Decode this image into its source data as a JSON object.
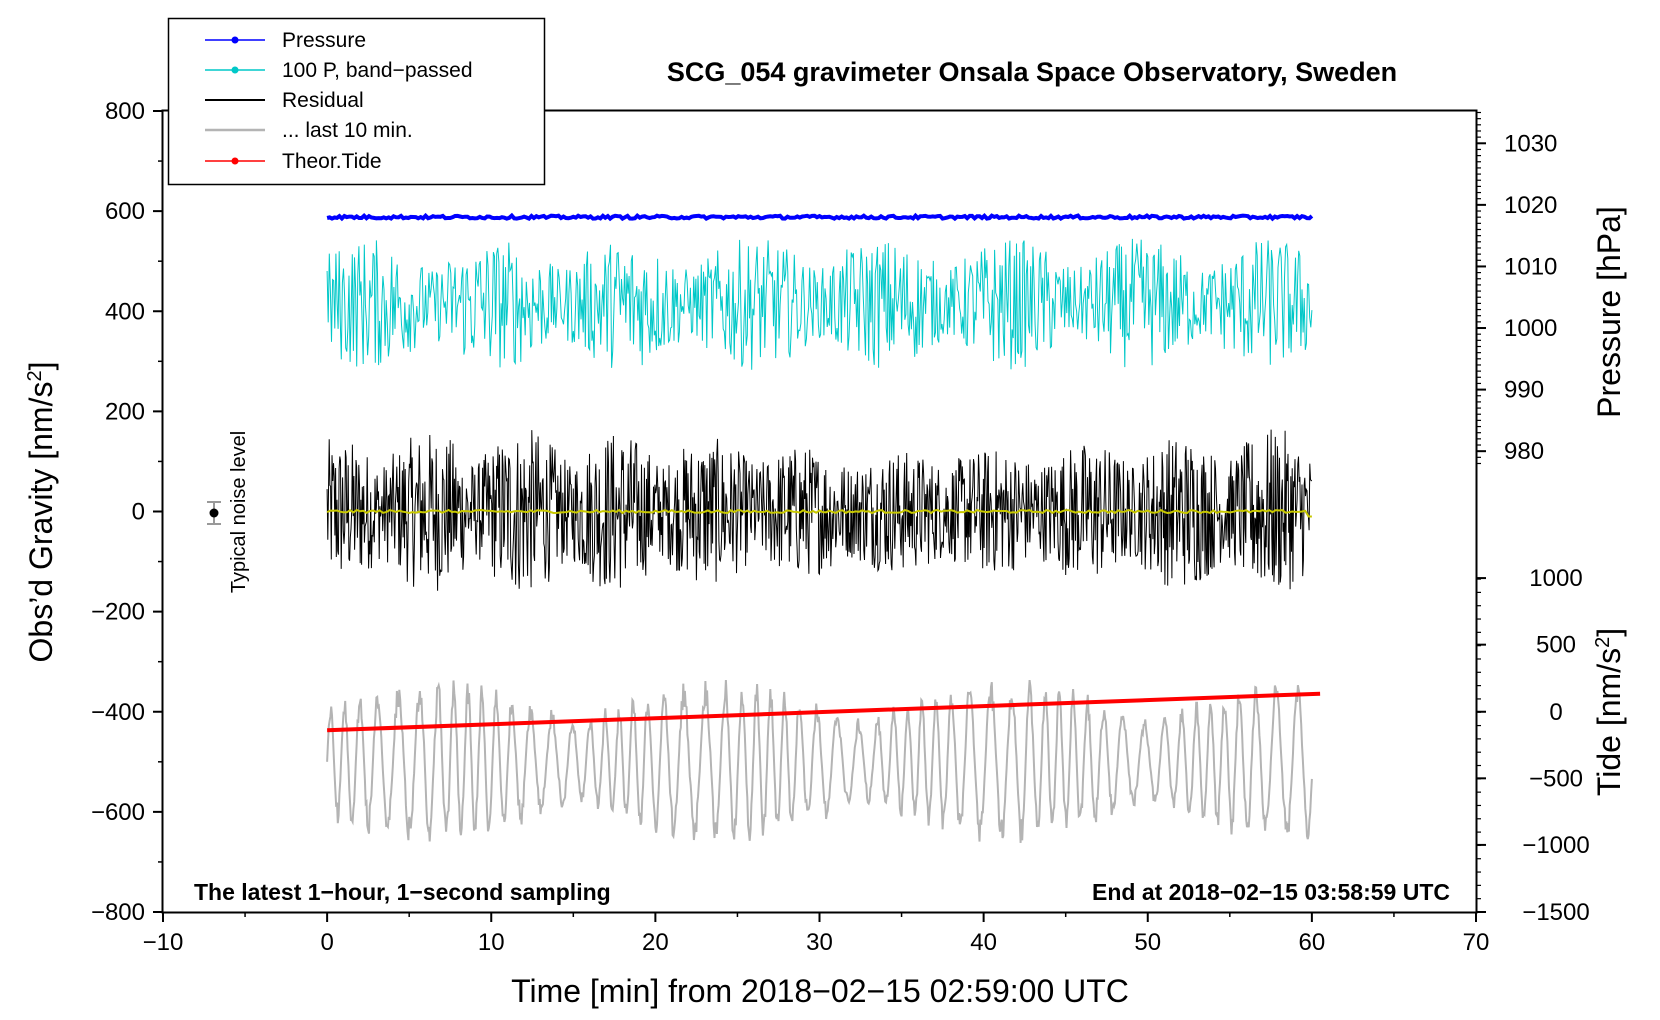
{
  "chart_data": {
    "type": "line",
    "title": "SCG_054 gravimeter Onsala Space Observatory, Sweden",
    "xlabel": "Time [min] from 2018−02−15 02:59:00 UTC",
    "ylabel_left": "Obs’d Gravity [nm/s²]",
    "ylabel_left_base": "Obs’d Gravity [nm/s",
    "ylabel_right_pressure": "Pressure [hPa]",
    "ylabel_right_tide": "Tide [nm/s²]",
    "ylabel_right_tide_base": "Tide [nm/s",
    "ylabel_sup": "2",
    "xlim": [
      -10,
      70
    ],
    "ylim": [
      -800,
      800
    ],
    "x_ticks": [
      {
        "value": -10,
        "label": "−10"
      },
      {
        "value": 0,
        "label": "0"
      },
      {
        "value": 10,
        "label": "10"
      },
      {
        "value": 20,
        "label": "20"
      },
      {
        "value": 30,
        "label": "30"
      },
      {
        "value": 40,
        "label": "40"
      },
      {
        "value": 50,
        "label": "50"
      },
      {
        "value": 60,
        "label": "60"
      },
      {
        "value": 70,
        "label": "70"
      }
    ],
    "y_ticks": [
      {
        "value": 800,
        "label": "800"
      },
      {
        "value": 600,
        "label": "600"
      },
      {
        "value": 400,
        "label": "400"
      },
      {
        "value": 200,
        "label": "200"
      },
      {
        "value": 0,
        "label": "0"
      },
      {
        "value": -200,
        "label": "−200"
      },
      {
        "value": -400,
        "label": "−400"
      },
      {
        "value": -600,
        "label": "−600"
      },
      {
        "value": -800,
        "label": "−800"
      }
    ],
    "pressure_axis": {
      "ticks": [
        {
          "value": 1030,
          "label": "1030",
          "gravity_equiv": 735.5
        },
        {
          "value": 1020,
          "label": "1020",
          "gravity_equiv": 612.5
        },
        {
          "value": 1010,
          "label": "1010",
          "gravity_equiv": 489.5
        },
        {
          "value": 1000,
          "label": "1000",
          "gravity_equiv": 366.5
        },
        {
          "value": 990,
          "label": "990",
          "gravity_equiv": 243.5
        },
        {
          "value": 980,
          "label": "980",
          "gravity_equiv": 120.5
        }
      ]
    },
    "tide_axis": {
      "ticks": [
        {
          "value": 1000,
          "label": "1000",
          "gravity_equiv": -133
        },
        {
          "value": 500,
          "label": "500",
          "gravity_equiv": -266
        },
        {
          "value": 0,
          "label": "0",
          "gravity_equiv": -400
        },
        {
          "value": -500,
          "label": "−500",
          "gravity_equiv": -533
        },
        {
          "value": -1000,
          "label": "−1000",
          "gravity_equiv": -666
        },
        {
          "value": -1500,
          "label": "−1500",
          "gravity_equiv": -800
        }
      ]
    },
    "legend": [
      {
        "name": "Pressure",
        "color": "#0000ff",
        "style": "line-dot"
      },
      {
        "name": "100 P, band−passed",
        "color": "#00c8c8",
        "style": "line-dot"
      },
      {
        "name": "Residual",
        "color": "#000000",
        "style": "line"
      },
      {
        "name": "... last 10 min.",
        "color": "#b4b4b4",
        "style": "line"
      },
      {
        "name": "Theor.Tide",
        "color": "#ff0000",
        "style": "line-dot"
      }
    ],
    "series": [
      {
        "name": "Pressure",
        "color": "#0000ff",
        "x_range": [
          0,
          60
        ],
        "approx_value": 588,
        "pressure_hpa": 1018.1
      },
      {
        "name": "100 P, band−passed",
        "color": "#00c8c8",
        "x_range": [
          0,
          60
        ],
        "center": 415,
        "amplitude": 110
      },
      {
        "name": "Residual",
        "color": "#000000",
        "x_range": [
          0,
          60
        ],
        "center": 0,
        "amplitude": 130
      },
      {
        "name": "Residual mean",
        "color": "#c8c800",
        "x_range": [
          0,
          60
        ],
        "center": 0
      },
      {
        "name": "... last 10 min.",
        "color": "#b4b4b4",
        "x_range": [
          0,
          60
        ],
        "center": -500,
        "amplitude": 140
      },
      {
        "name": "Theor.Tide",
        "color": "#ff0000",
        "x": [
          0,
          60.5
        ],
        "y": [
          -437,
          -364
        ]
      }
    ],
    "noise_marker": {
      "label": "Typical noise level",
      "x": -7,
      "y": 0,
      "error": 22
    },
    "annotations": {
      "left": "The latest 1−hour, 1−second sampling",
      "right": "End at 2018−02−15 03:58:59 UTC"
    }
  }
}
